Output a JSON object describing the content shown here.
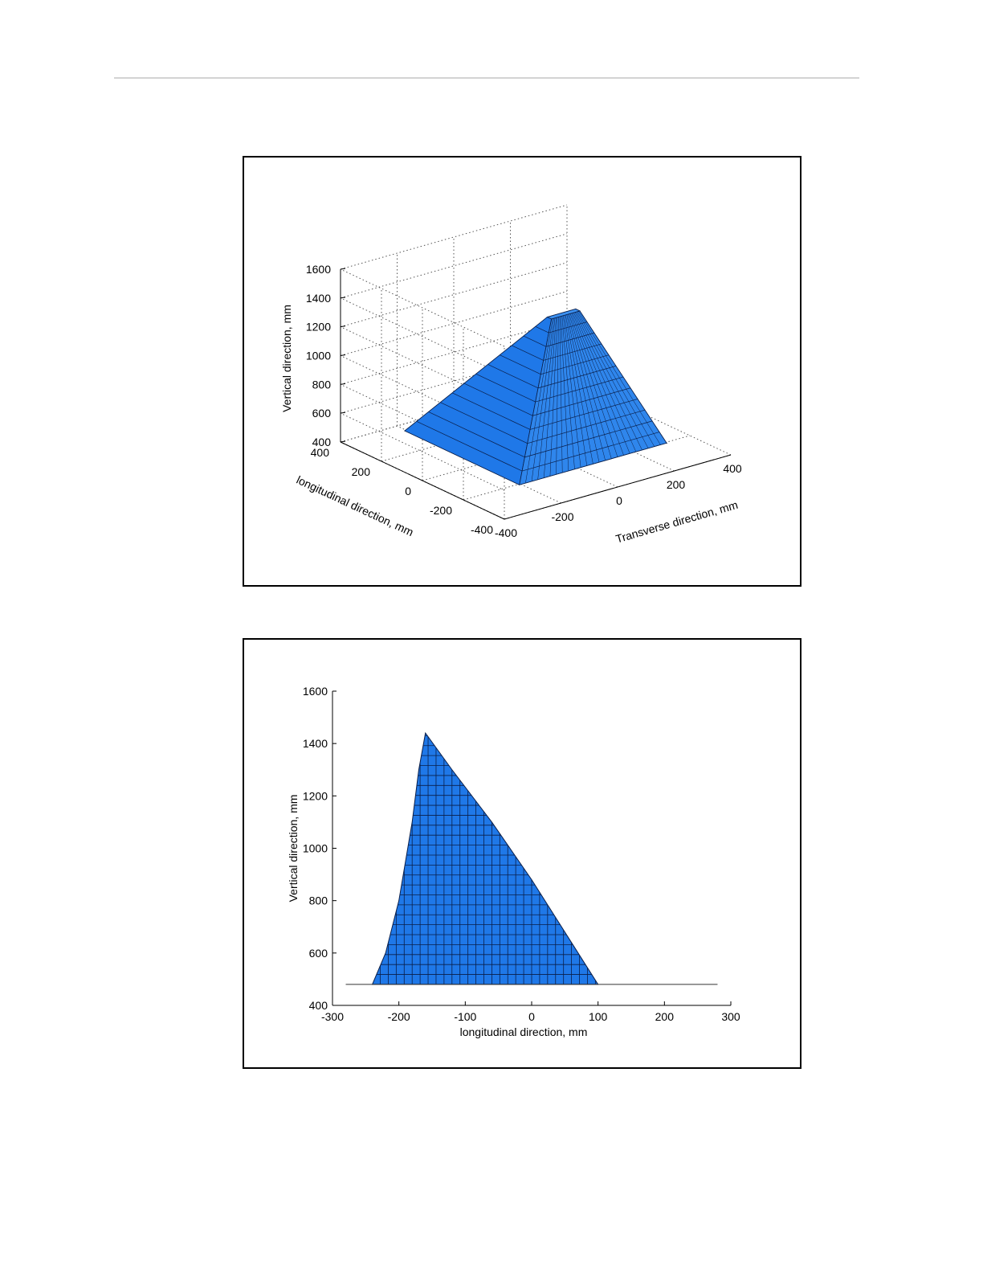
{
  "colors": {
    "surface": "#1f78e8",
    "surface_dark": "#0f4fa8",
    "mesh": "#0a1f4a",
    "grid": "#555555"
  },
  "chart_data": [
    {
      "type": "surface3d",
      "title": "",
      "xlabel": "Transverse direction, mm",
      "ylabel": "longitudinal direction, mm",
      "zlabel": "Vertical direction, mm",
      "xlim": [
        -400,
        400
      ],
      "ylim": [
        -400,
        400
      ],
      "zlim": [
        400,
        1600
      ],
      "xticks": [
        "-400",
        "-200",
        "0",
        "200",
        "400"
      ],
      "yticks": [
        "-400",
        "-200",
        "0",
        "200",
        "400"
      ],
      "zticks": [
        "400",
        "600",
        "800",
        "1000",
        "1200",
        "1400",
        "1600"
      ],
      "base_z": 480,
      "peak_z": 1440,
      "base_extent": {
        "x": [
          -260,
          260
        ],
        "y": [
          -280,
          280
        ]
      },
      "ridge_extent": {
        "x": [
          -60,
          40
        ],
        "y": [
          -160,
          -140
        ]
      },
      "grid": true
    },
    {
      "type": "area",
      "title": "",
      "xlabel": "longitudinal direction, mm",
      "ylabel": "Vertical direction, mm",
      "xlim": [
        -300,
        300
      ],
      "ylim": [
        400,
        1600
      ],
      "xticks": [
        "-300",
        "-200",
        "-100",
        "0",
        "100",
        "200",
        "300"
      ],
      "yticks": [
        "400",
        "600",
        "800",
        "1000",
        "1200",
        "1400",
        "1600"
      ],
      "profile": [
        {
          "x": -240,
          "y": 480
        },
        {
          "x": -220,
          "y": 600
        },
        {
          "x": -200,
          "y": 800
        },
        {
          "x": -180,
          "y": 1100
        },
        {
          "x": -170,
          "y": 1300
        },
        {
          "x": -160,
          "y": 1440
        },
        {
          "x": -120,
          "y": 1300
        },
        {
          "x": -60,
          "y": 1100
        },
        {
          "x": 0,
          "y": 880
        },
        {
          "x": 60,
          "y": 640
        },
        {
          "x": 100,
          "y": 480
        }
      ],
      "baseline": {
        "y": 480,
        "x": [
          -280,
          280
        ]
      },
      "grid": true
    }
  ]
}
